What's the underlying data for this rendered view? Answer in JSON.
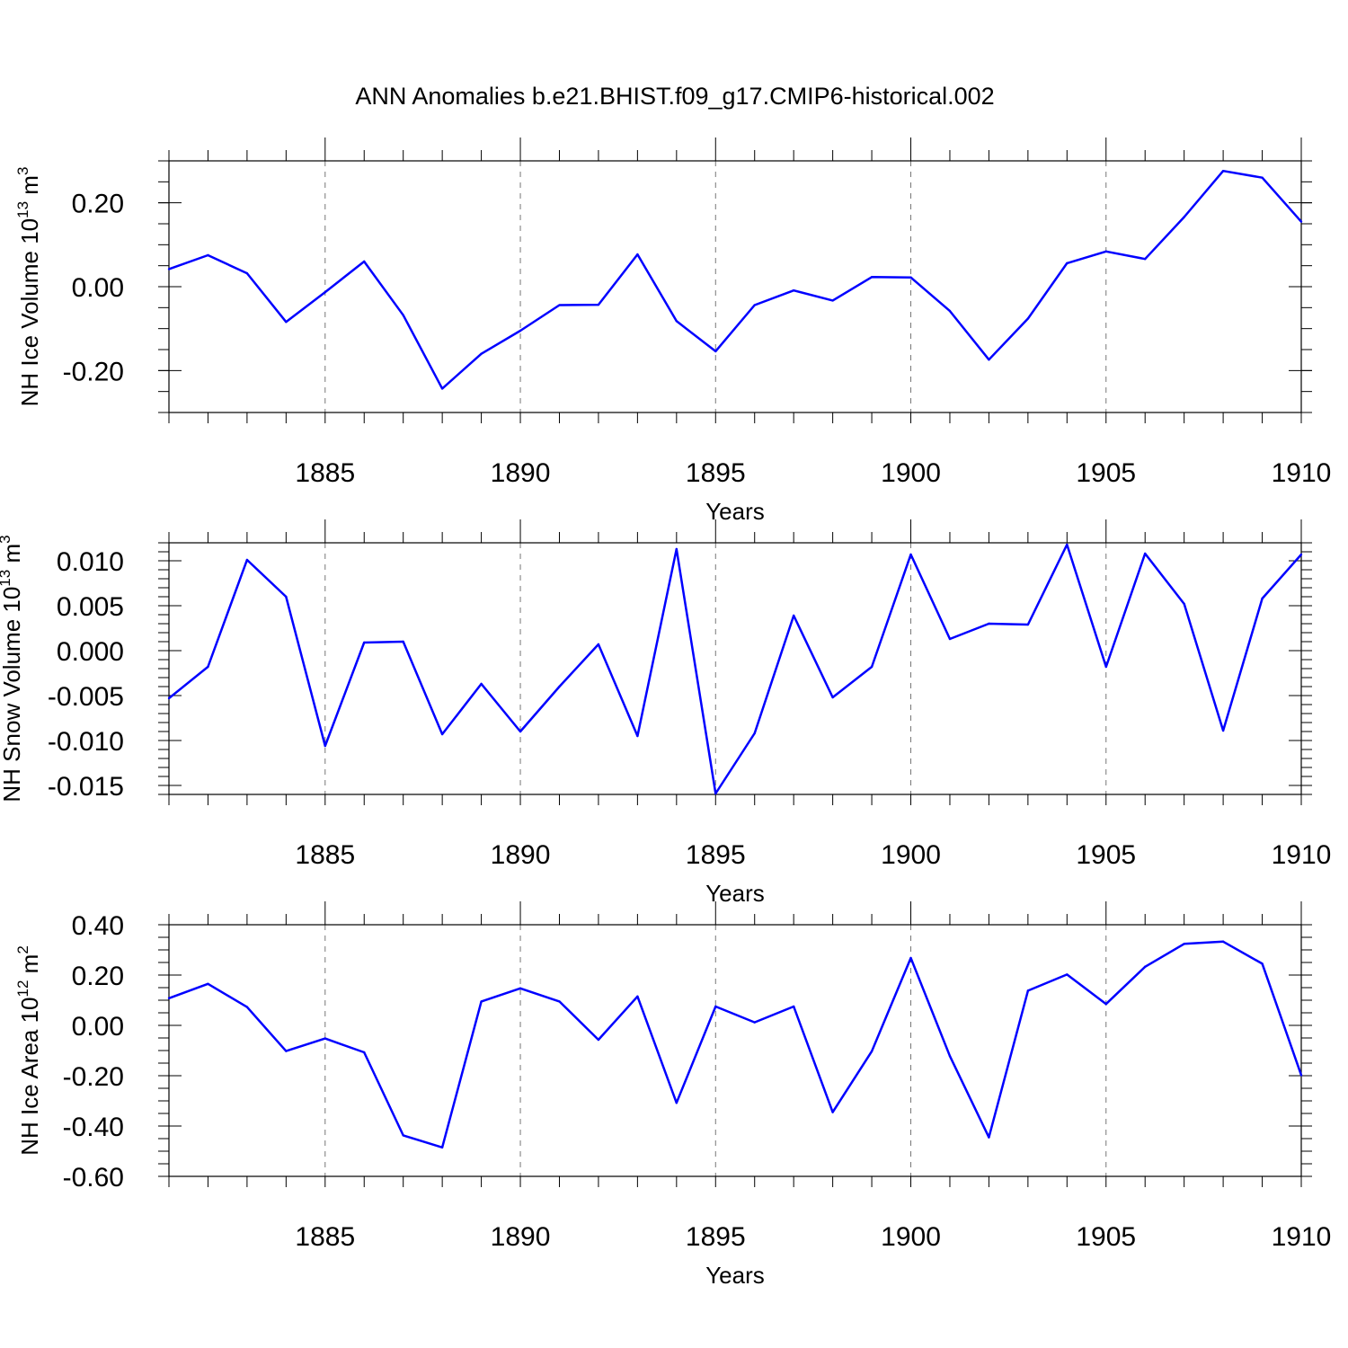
{
  "figure": {
    "title": "ANN Anomalies b.e21.BHIST.f09_g17.CMIP6-historical.002"
  },
  "colors": {
    "series": "#0000ff",
    "grid": "#777777",
    "axes": "#000000"
  },
  "chart_data": [
    {
      "type": "line",
      "title": "ANN Anomalies b.e21.BHIST.f09_g17.CMIP6-historical.002",
      "xlabel": "Years",
      "ylabel": "NH Ice Volume 10",
      "ylabel_exponent": "13",
      "ylabel_unit": "m",
      "ylabel_unit_exponent": "3",
      "xlim": [
        1881,
        1910
      ],
      "ylim": [
        -0.3,
        0.3
      ],
      "x_ticks": [
        1885,
        1890,
        1895,
        1900,
        1905,
        1910
      ],
      "x_tick_labels": [
        "1885",
        "1890",
        "1895",
        "1900",
        "1905",
        "1910"
      ],
      "y_ticks": [
        -0.2,
        0.0,
        0.2
      ],
      "y_tick_labels": [
        "-0.20",
        "0.00",
        "0.20"
      ],
      "y_minor_step": 0.05,
      "grid": "vertical-dashed",
      "x": [
        1881,
        1882,
        1883,
        1884,
        1885,
        1886,
        1887,
        1888,
        1889,
        1890,
        1891,
        1892,
        1893,
        1894,
        1895,
        1896,
        1897,
        1898,
        1899,
        1900,
        1901,
        1902,
        1903,
        1904,
        1905,
        1906,
        1907,
        1908,
        1909,
        1910
      ],
      "values": [
        0.042,
        0.075,
        0.032,
        -0.084,
        -0.013,
        0.06,
        -0.068,
        -0.243,
        -0.16,
        -0.105,
        -0.044,
        -0.043,
        0.077,
        -0.082,
        -0.154,
        -0.044,
        -0.009,
        -0.033,
        0.023,
        0.022,
        -0.058,
        -0.174,
        -0.076,
        0.056,
        0.084,
        0.066,
        0.166,
        0.276,
        0.26,
        0.155
      ]
    },
    {
      "type": "line",
      "xlabel": "Years",
      "ylabel": "NH Snow Volume 10",
      "ylabel_exponent": "13",
      "ylabel_unit": "m",
      "ylabel_unit_exponent": "3",
      "xlim": [
        1881,
        1910
      ],
      "ylim": [
        -0.016,
        0.012
      ],
      "x_ticks": [
        1885,
        1890,
        1895,
        1900,
        1905,
        1910
      ],
      "x_tick_labels": [
        "1885",
        "1890",
        "1895",
        "1900",
        "1905",
        "1910"
      ],
      "y_ticks": [
        -0.015,
        -0.01,
        -0.005,
        0.0,
        0.005,
        0.01
      ],
      "y_tick_labels": [
        "-0.015",
        "-0.010",
        "-0.005",
        "0.000",
        "0.005",
        "0.010"
      ],
      "y_minor_step": 0.001,
      "grid": "vertical-dashed",
      "x": [
        1881,
        1882,
        1883,
        1884,
        1885,
        1886,
        1887,
        1888,
        1889,
        1890,
        1891,
        1892,
        1893,
        1894,
        1895,
        1896,
        1897,
        1898,
        1899,
        1900,
        1901,
        1902,
        1903,
        1904,
        1905,
        1906,
        1907,
        1908,
        1909,
        1910
      ],
      "values": [
        -0.0053,
        -0.0018,
        0.0101,
        0.006,
        -0.0106,
        0.0009,
        0.001,
        -0.0093,
        -0.0037,
        -0.009,
        -0.004,
        0.0007,
        -0.0095,
        0.0113,
        -0.0159,
        -0.0092,
        0.0039,
        -0.0052,
        -0.0018,
        0.0107,
        0.0013,
        0.003,
        0.0029,
        0.0118,
        -0.0018,
        0.0108,
        0.0052,
        -0.0089,
        0.0058,
        0.0107
      ]
    },
    {
      "type": "line",
      "xlabel": "Years",
      "ylabel": "NH Ice Area 10",
      "ylabel_exponent": "12",
      "ylabel_unit": "m",
      "ylabel_unit_exponent": "2",
      "xlim": [
        1881,
        1910
      ],
      "ylim": [
        -0.6,
        0.4
      ],
      "x_ticks": [
        1885,
        1890,
        1895,
        1900,
        1905,
        1910
      ],
      "x_tick_labels": [
        "1885",
        "1890",
        "1895",
        "1900",
        "1905",
        "1910"
      ],
      "y_ticks": [
        -0.6,
        -0.4,
        -0.2,
        0.0,
        0.2,
        0.4
      ],
      "y_tick_labels": [
        "-0.60",
        "-0.40",
        "-0.20",
        "0.00",
        "0.20",
        "0.40"
      ],
      "y_minor_step": 0.05,
      "grid": "vertical-dashed",
      "x": [
        1881,
        1882,
        1883,
        1884,
        1885,
        1886,
        1887,
        1888,
        1889,
        1890,
        1891,
        1892,
        1893,
        1894,
        1895,
        1896,
        1897,
        1898,
        1899,
        1900,
        1901,
        1902,
        1903,
        1904,
        1905,
        1906,
        1907,
        1908,
        1909,
        1910
      ],
      "values": [
        0.108,
        0.165,
        0.073,
        -0.102,
        -0.052,
        -0.107,
        -0.437,
        -0.485,
        0.095,
        0.147,
        0.095,
        -0.057,
        0.115,
        -0.308,
        0.075,
        0.012,
        0.075,
        -0.345,
        -0.103,
        0.268,
        -0.122,
        -0.445,
        0.138,
        0.202,
        0.085,
        0.233,
        0.324,
        0.333,
        0.245,
        -0.198
      ]
    }
  ]
}
